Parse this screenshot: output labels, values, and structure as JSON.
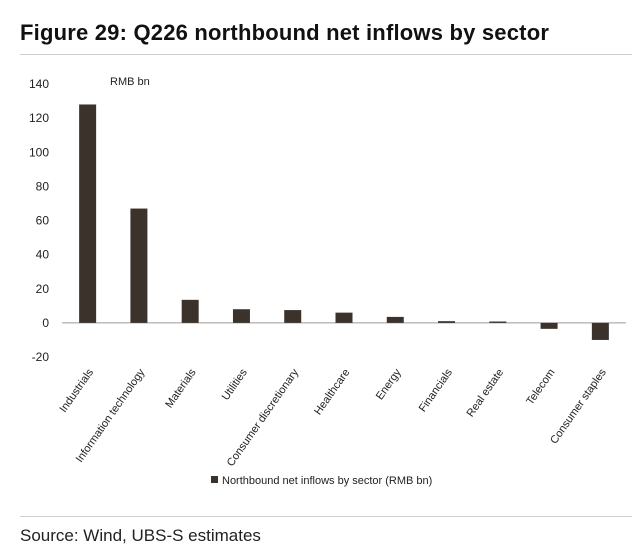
{
  "header": {
    "title": "Figure 29: Q226 northbound net inflows by sector"
  },
  "footer": {
    "source": "Source: Wind, UBS-S estimates"
  },
  "chart_data": {
    "type": "bar",
    "unit_label": "RMB bn",
    "categories": [
      "Industrials",
      "Information technology",
      "Materials",
      "Utilities",
      "Consumer discretionary",
      "Healthcare",
      "Energy",
      "Financials",
      "Real estate",
      "Telecom",
      "Consumer staples"
    ],
    "series": [
      {
        "name": "Northbound net inflows by sector (RMB bn)",
        "values": [
          128,
          67,
          13.5,
          8,
          7.5,
          6,
          3.5,
          1,
          0.8,
          -3.5,
          -10
        ]
      }
    ],
    "ylim": [
      -20,
      140
    ],
    "yticks": [
      -20,
      0,
      20,
      40,
      60,
      80,
      100,
      120,
      140
    ],
    "legend_position": "bottom",
    "grid": false,
    "bar_color": "#3b332b"
  }
}
